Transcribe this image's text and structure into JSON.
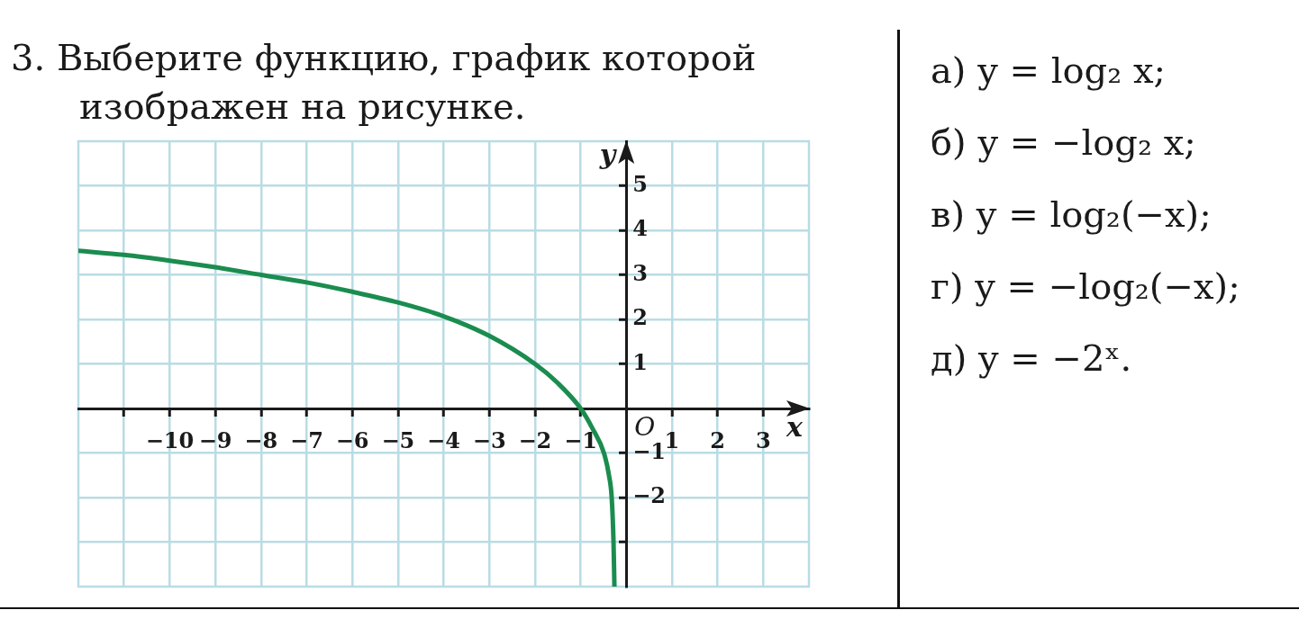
{
  "chart_data": {
    "type": "line",
    "title": "3. Выберите функцию, график которой изображен на рисунке.",
    "xlabel": "x",
    "ylabel": "y",
    "x": [
      -12,
      -11,
      -10,
      -9,
      -8,
      -7,
      -6,
      -5,
      -4,
      -3,
      -2,
      -1.5,
      -1,
      -0.75,
      -0.49,
      -0.38,
      -0.32,
      -0.28,
      -0.26
    ],
    "series": [
      {
        "color": "#1b8c4f",
        "values": [
          3.54,
          3.45,
          3.32,
          3.17,
          3.0,
          2.83,
          2.62,
          2.38,
          2.07,
          1.63,
          1.0,
          0.57,
          0,
          -0.43,
          -1,
          -1.5,
          -2,
          -3,
          -4
        ]
      }
    ],
    "xlim": [
      -12,
      4
    ],
    "ylim": [
      -4,
      6
    ],
    "xticks": [
      {
        "value": -11,
        "label": null
      },
      -10,
      -9,
      -8,
      -7,
      -6,
      -5,
      -4,
      -3,
      -2,
      -1,
      1,
      2,
      3
    ],
    "yticks": [
      {
        "value": -3,
        "label": null
      },
      -2,
      -1,
      1,
      2,
      3,
      4,
      5
    ],
    "grid": true,
    "marker": "none",
    "line_style": "solid",
    "annotations": [
      "O",
      "а) y = log₂ x;",
      "б) y = −log₂ x;",
      "в) y = log₂(−x);",
      "г) y = −log₂(−x);",
      "д) y = −2ˣ."
    ]
  }
}
